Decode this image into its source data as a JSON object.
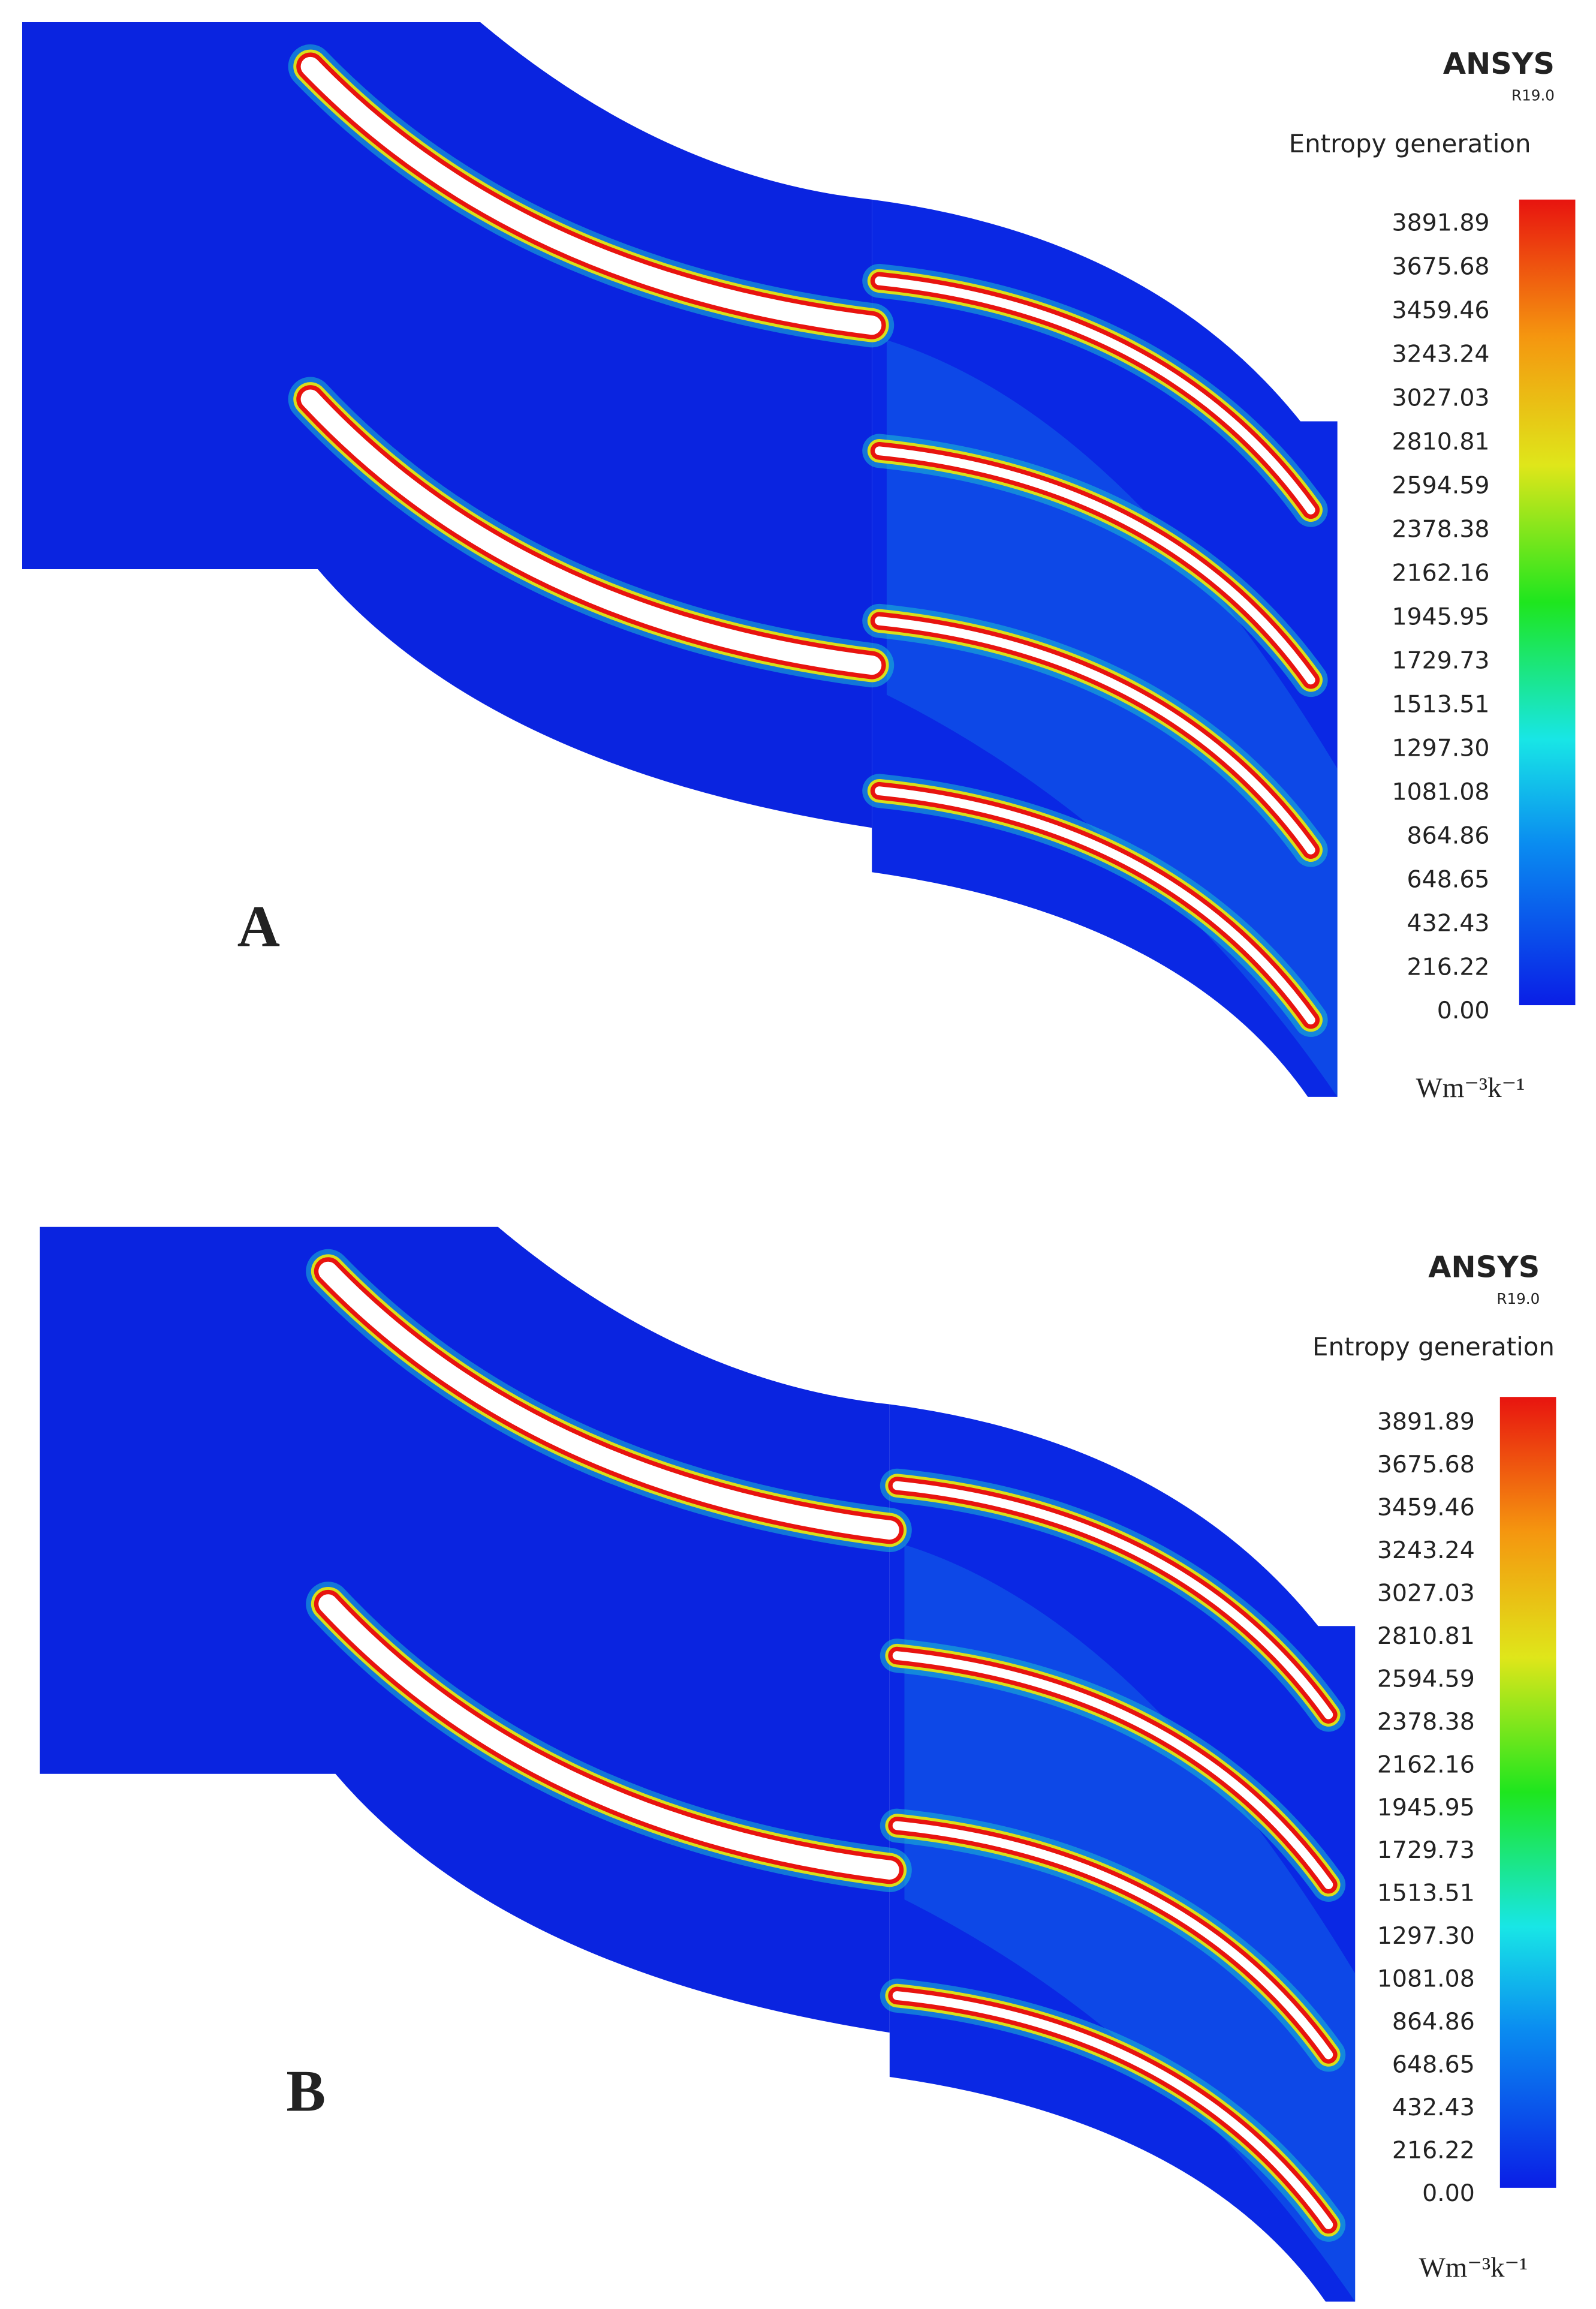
{
  "panels": [
    {
      "label": "A",
      "legend": {
        "brand": "ANSYS",
        "version": "R19.0",
        "title": "Entropy generation",
        "ticks": [
          "3891.89",
          "3675.68",
          "3459.46",
          "3243.24",
          "3027.03",
          "2810.81",
          "2594.59",
          "2378.38",
          "2162.16",
          "1945.95",
          "1729.73",
          "1513.51",
          "1297.30",
          "1081.08",
          "864.86",
          "648.65",
          "432.43",
          "216.22",
          "0.00"
        ],
        "unit": "Wm⁻³k⁻¹"
      }
    },
    {
      "label": "B",
      "legend": {
        "brand": "ANSYS",
        "version": "R19.0",
        "title": "Entropy generation",
        "ticks": [
          "3891.89",
          "3675.68",
          "3459.46",
          "3243.24",
          "3027.03",
          "2810.81",
          "2594.59",
          "2378.38",
          "2162.16",
          "1945.95",
          "1729.73",
          "1513.51",
          "1297.30",
          "1081.08",
          "864.86",
          "648.65",
          "432.43",
          "216.22",
          "0.00"
        ],
        "unit": "Wm⁻³k⁻¹"
      }
    }
  ]
}
